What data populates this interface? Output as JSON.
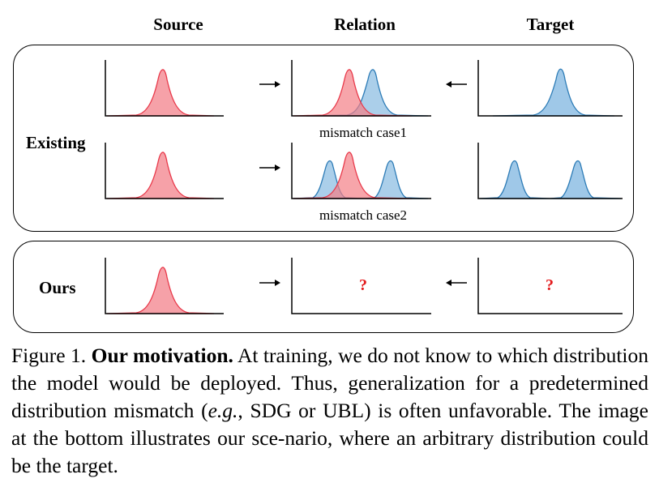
{
  "columns": {
    "source": "Source",
    "relation": "Relation",
    "target": "Target"
  },
  "rows": {
    "existing": "Existing",
    "ours": "Ours"
  },
  "labels": {
    "case1": "mismatch case1",
    "case2": "mismatch case2",
    "unknown": "?"
  },
  "caption": {
    "prefix": "Figure 1.",
    "bold": "Our motivation.",
    "part1": "At training, we do not know to which distribution the model would be deployed. Thus, generalization for a predetermined distribution mismatch (",
    "eg": "e.g.",
    "part2": ", SDG or UBL) is often unfavorable. The image at the bottom illustrates our sce-nario, where an arbitrary distribution could be the target."
  },
  "colors": {
    "red": "#f47f86",
    "blue": "#7fb2dd",
    "red_line": "#e8394a",
    "blue_line": "#2c7bb6",
    "question": "#e31a1c"
  }
}
